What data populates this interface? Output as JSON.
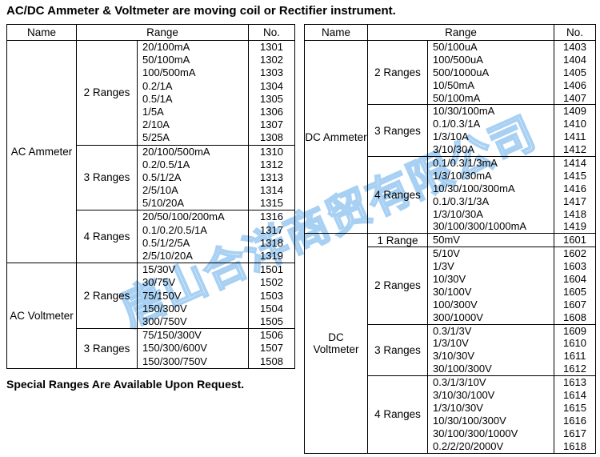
{
  "title": "AC/DC Ammeter & Voltmeter are moving coil or Rectifier instrument.",
  "footnote": "Special Ranges Are Available Upon Request.",
  "watermark": "唐山合洋商贸有限公司",
  "watermark_color": "#94c5f0",
  "tables": [
    {
      "id": "ac-table",
      "headers": [
        "Name",
        "Range",
        "No."
      ],
      "sections": [
        {
          "name": "AC Ammeter",
          "groups": [
            {
              "label": "2 Ranges",
              "rows": [
                [
                  "20/100mA",
                  "1301"
                ],
                [
                  "50/100mA",
                  "1302"
                ],
                [
                  "100/500mA",
                  "1303"
                ],
                [
                  "0.2/1A",
                  "1304"
                ],
                [
                  "0.5/1A",
                  "1305"
                ],
                [
                  "1/5A",
                  "1306"
                ],
                [
                  "2/10A",
                  "1307"
                ],
                [
                  "5/25A",
                  "1308"
                ]
              ]
            },
            {
              "label": "3 Ranges",
              "rows": [
                [
                  "20/100/500mA",
                  "1310"
                ],
                [
                  "0.2/0.5/1A",
                  "1312"
                ],
                [
                  "0.5/1/2A",
                  "1313"
                ],
                [
                  "2/5/10A",
                  "1314"
                ],
                [
                  "5/10/20A",
                  "1315"
                ]
              ]
            },
            {
              "label": "4 Ranges",
              "rows": [
                [
                  "20/50/100/200mA",
                  "1316"
                ],
                [
                  "0.1/0.2/0.5/1A",
                  "1317"
                ],
                [
                  "0.5/1/2/5A",
                  "1318"
                ],
                [
                  "2/5/10/20A",
                  "1319"
                ]
              ]
            }
          ]
        },
        {
          "name": "AC Voltmeter",
          "groups": [
            {
              "label": "2 Ranges",
              "rows": [
                [
                  "15/30V",
                  "1501"
                ],
                [
                  "30/75V",
                  "1502"
                ],
                [
                  "75/150V",
                  "1503"
                ],
                [
                  "150/300V",
                  "1504"
                ],
                [
                  "300/750V",
                  "1505"
                ]
              ]
            },
            {
              "label": "3 Ranges",
              "rows": [
                [
                  "75/150/300V",
                  "1506"
                ],
                [
                  "150/300/600V",
                  "1507"
                ],
                [
                  "150/300/750V",
                  "1508"
                ]
              ]
            }
          ]
        }
      ]
    },
    {
      "id": "dc-table",
      "headers": [
        "Name",
        "Range",
        "No."
      ],
      "sections": [
        {
          "name": "DC Ammeter",
          "groups": [
            {
              "label": "2 Ranges",
              "rows": [
                [
                  "50/100uA",
                  "1403"
                ],
                [
                  "100/500uA",
                  "1404"
                ],
                [
                  "500/1000uA",
                  "1405"
                ],
                [
                  "10/50mA",
                  "1406"
                ],
                [
                  "50/100mA",
                  "1407"
                ]
              ]
            },
            {
              "label": "3 Ranges",
              "rows": [
                [
                  "10/30/100mA",
                  "1409"
                ],
                [
                  "0.1/0.3/1A",
                  "1410"
                ],
                [
                  "1/3/10A",
                  "1411"
                ],
                [
                  "3/10/30A",
                  "1412"
                ]
              ]
            },
            {
              "label": "4 Ranges",
              "rows": [
                [
                  "0.1/0.3/1/3mA",
                  "1414"
                ],
                [
                  "1/3/10/30mA",
                  "1415"
                ],
                [
                  "10/30/100/300mA",
                  "1416"
                ],
                [
                  "0.1/0.3/1/3A",
                  "1417"
                ],
                [
                  "1/3/10/30A",
                  "1418"
                ],
                [
                  "30/100/300/1000mA",
                  "1419"
                ]
              ]
            }
          ]
        },
        {
          "name": "DC Voltmeter",
          "groups": [
            {
              "label": "1 Range",
              "rows": [
                [
                  "50mV",
                  "1601"
                ]
              ]
            },
            {
              "label": "2 Ranges",
              "rows": [
                [
                  "5/10V",
                  "1602"
                ],
                [
                  "1/3V",
                  "1603"
                ],
                [
                  "10/30V",
                  "1604"
                ],
                [
                  "30/100V",
                  "1605"
                ],
                [
                  "100/300V",
                  "1607"
                ],
                [
                  "300/1000V",
                  "1608"
                ]
              ]
            },
            {
              "label": "3 Ranges",
              "rows": [
                [
                  "0.3/1/3V",
                  "1609"
                ],
                [
                  "1/3/10V",
                  "1610"
                ],
                [
                  "3/10/30V",
                  "1611"
                ],
                [
                  "30/100/300V",
                  "1612"
                ]
              ]
            },
            {
              "label": "4 Ranges",
              "rows": [
                [
                  "0.3/1/3/10V",
                  "1613"
                ],
                [
                  "3/10/30/100V",
                  "1614"
                ],
                [
                  "1/3/10/30V",
                  "1615"
                ],
                [
                  "10/30/100/300V",
                  "1616"
                ],
                [
                  "30/100/300/1000V",
                  "1617"
                ],
                [
                  "0.2/2/20/2000V",
                  "1618"
                ]
              ]
            }
          ]
        }
      ]
    }
  ]
}
